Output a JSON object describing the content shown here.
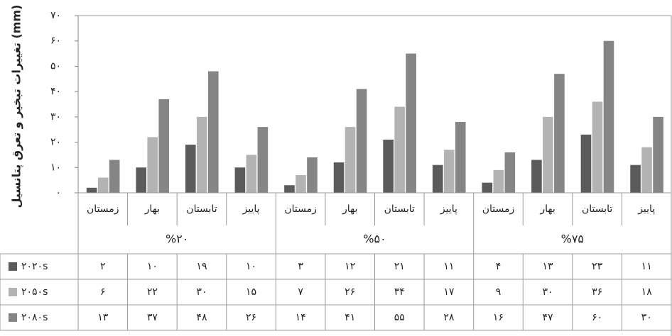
{
  "chart_data": {
    "type": "bar",
    "y_label": "تغییرات تبخیر و تعرق پتانسیل (mm)",
    "categories": [
      "زمستان",
      "بهار",
      "تابستان",
      "پاییز",
      "زمستان",
      "بهار",
      "تابستان",
      "پاییز",
      "زمستان",
      "بهار",
      "تابستان",
      "پاییز"
    ],
    "groups": [
      "%۲۰",
      "%۵۰",
      "%۷۵"
    ],
    "series": [
      {
        "name": "۲۰۲۰s",
        "color": "#5b5b5b",
        "values": [
          2,
          10,
          19,
          10,
          3,
          12,
          21,
          11,
          4,
          13,
          23,
          11
        ],
        "value_labels": [
          "۲",
          "۱۰",
          "۱۹",
          "۱۰",
          "۳",
          "۱۲",
          "۲۱",
          "۱۱",
          "۴",
          "۱۳",
          "۲۳",
          "۱۱"
        ]
      },
      {
        "name": "۲۰۵۰s",
        "color": "#b3b3b3",
        "values": [
          6,
          22,
          30,
          15,
          7,
          26,
          34,
          17,
          9,
          30,
          36,
          18
        ],
        "value_labels": [
          "۶",
          "۲۲",
          "۳۰",
          "۱۵",
          "۷",
          "۲۶",
          "۳۴",
          "۱۷",
          "۹",
          "۳۰",
          "۳۶",
          "۱۸"
        ]
      },
      {
        "name": "۲۰۸۰s",
        "color": "#858585",
        "values": [
          13,
          37,
          48,
          26,
          14,
          41,
          55,
          28,
          16,
          47,
          60,
          30
        ],
        "value_labels": [
          "۱۳",
          "۳۷",
          "۴۸",
          "۲۶",
          "۱۴",
          "۴۱",
          "۵۵",
          "۲۸",
          "۱۶",
          "۴۷",
          "۶۰",
          "۳۰"
        ]
      }
    ],
    "ylim": [
      0,
      70
    ],
    "yticks": [
      {
        "value": 0,
        "label": "۰"
      },
      {
        "value": 10,
        "label": "۱۰"
      },
      {
        "value": 20,
        "label": "۲۰"
      },
      {
        "value": 30,
        "label": "۳۰"
      },
      {
        "value": 40,
        "label": "۴۰"
      },
      {
        "value": 50,
        "label": "۵۰"
      },
      {
        "value": 60,
        "label": "۶۰"
      },
      {
        "value": 70,
        "label": "۷۰"
      }
    ]
  }
}
